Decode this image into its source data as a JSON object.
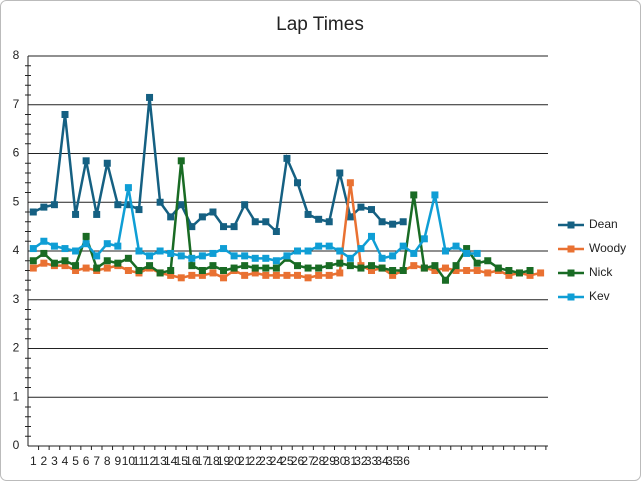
{
  "chart_data": {
    "type": "line",
    "title": "Lap Times",
    "categories": [
      1,
      2,
      3,
      4,
      5,
      6,
      7,
      8,
      9,
      10,
      11,
      12,
      13,
      14,
      15,
      16,
      17,
      18,
      19,
      20,
      21,
      22,
      23,
      24,
      25,
      26,
      27,
      28,
      29,
      30,
      31,
      32,
      33,
      34,
      35,
      36,
      null,
      null,
      null,
      null,
      null,
      null,
      null,
      null,
      null,
      null,
      null,
      null,
      null
    ],
    "series": [
      {
        "name": "Dean",
        "color": "#156082",
        "values": [
          4.8,
          4.9,
          4.95,
          6.8,
          4.75,
          5.85,
          4.75,
          5.8,
          4.95,
          4.95,
          4.85,
          7.15,
          5.0,
          4.7,
          4.95,
          4.5,
          4.7,
          4.8,
          4.5,
          4.5,
          4.95,
          4.6,
          4.6,
          4.4,
          5.9,
          5.4,
          4.75,
          4.65,
          4.6,
          5.6,
          4.7,
          4.9,
          4.85,
          4.6,
          4.55,
          4.6,
          null,
          null,
          null,
          null,
          null,
          null,
          null,
          null,
          null,
          null,
          null,
          null,
          null
        ]
      },
      {
        "name": "Woody",
        "color": "#e97132",
        "values": [
          3.65,
          3.75,
          3.7,
          3.7,
          3.6,
          3.65,
          3.6,
          3.65,
          3.7,
          3.6,
          3.55,
          3.65,
          3.55,
          3.5,
          3.45,
          3.5,
          3.5,
          3.55,
          3.45,
          3.6,
          3.5,
          3.55,
          3.5,
          3.5,
          3.5,
          3.5,
          3.45,
          3.5,
          3.5,
          3.55,
          5.4,
          3.7,
          3.6,
          3.65,
          3.5,
          3.6,
          3.7,
          3.65,
          3.6,
          3.65,
          3.6,
          3.6,
          3.6,
          3.55,
          3.6,
          3.5,
          3.55,
          3.5,
          3.55
        ]
      },
      {
        "name": "Nick",
        "color": "#196b24",
        "values": [
          3.8,
          3.95,
          3.75,
          3.8,
          3.7,
          4.3,
          3.65,
          3.8,
          3.75,
          3.85,
          3.6,
          3.7,
          3.55,
          3.6,
          5.85,
          3.7,
          3.6,
          3.7,
          3.6,
          3.65,
          3.7,
          3.65,
          3.65,
          3.65,
          3.85,
          3.7,
          3.65,
          3.65,
          3.7,
          3.75,
          3.7,
          3.65,
          3.7,
          3.65,
          3.6,
          3.6,
          5.15,
          3.65,
          3.7,
          3.4,
          3.7,
          4.05,
          3.75,
          3.8,
          3.65,
          3.6,
          3.55,
          3.6,
          null
        ]
      },
      {
        "name": "Kev",
        "color": "#0f9ed5",
        "values": [
          4.05,
          4.2,
          4.1,
          4.05,
          4.0,
          4.15,
          3.9,
          4.15,
          4.1,
          5.3,
          4.0,
          3.9,
          4.0,
          3.95,
          3.9,
          3.85,
          3.9,
          3.95,
          4.05,
          3.9,
          3.9,
          3.85,
          3.85,
          3.8,
          3.9,
          4.0,
          4.0,
          4.1,
          4.1,
          4.0,
          3.85,
          4.05,
          4.3,
          3.85,
          3.9,
          4.1,
          3.95,
          4.25,
          5.15,
          4.0,
          4.1,
          3.95,
          3.95,
          null,
          null,
          null,
          null,
          null,
          null
        ]
      }
    ],
    "ylim": [
      0,
      8
    ],
    "yticks": [
      0,
      1,
      2,
      3,
      4,
      5,
      6,
      7,
      8
    ],
    "grid": true,
    "legend": "right"
  }
}
